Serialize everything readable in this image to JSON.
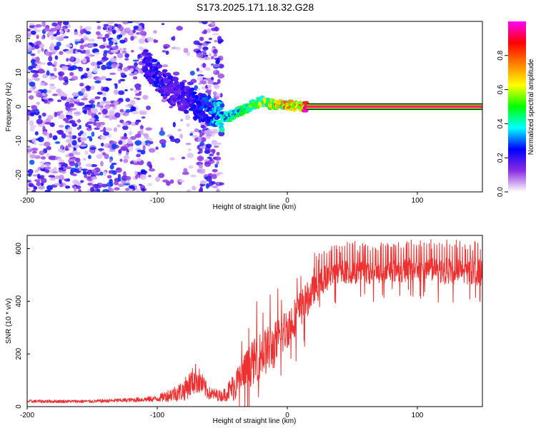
{
  "chart_data": [
    {
      "type": "heatmap",
      "title": "S173.2025.171.18.32.G28",
      "xlabel": "Height of straight line (km)",
      "ylabel": "Frequency (Hz)",
      "xlim": [
        -200,
        150
      ],
      "ylim": [
        -25,
        25
      ],
      "x_ticks": [
        -200,
        -100,
        0,
        100
      ],
      "y_ticks": [
        -20,
        -10,
        0,
        10,
        20
      ],
      "colorbar": {
        "label": "Normalized spectral amplitude",
        "range": [
          0,
          1
        ],
        "ticks": [
          0.0,
          0.2,
          0.4,
          0.6,
          0.8
        ],
        "colormap": [
          "#ffffff",
          "#8a2be2",
          "#0000ff",
          "#00ffff",
          "#00ff00",
          "#ffff00",
          "#ff8000",
          "#ff0000",
          "#ff00ff"
        ]
      },
      "ridge": {
        "description_points_x": [
          -110,
          -100,
          -90,
          -80,
          -70,
          -60,
          -50,
          -45,
          -40,
          -30,
          -20,
          -10,
          0,
          10,
          15,
          150
        ],
        "description_points_y": [
          13,
          9,
          5,
          3,
          0,
          -1,
          -3,
          -3,
          -2,
          0,
          1.5,
          0.5,
          0.5,
          0,
          0,
          0
        ],
        "amplitude": [
          0.2,
          0.25,
          0.2,
          0.2,
          0.25,
          0.3,
          0.4,
          0.45,
          0.45,
          0.5,
          0.6,
          0.7,
          0.75,
          0.8,
          0.95,
          0.95
        ]
      },
      "noise_region_x": [
        -200,
        -50
      ],
      "grid": false
    },
    {
      "type": "line",
      "xlabel": "Height of straight line (km)",
      "ylabel": "SNR (10 * v/v)",
      "xlim": [
        -200,
        150
      ],
      "ylim": [
        0,
        650
      ],
      "x_ticks": [
        -200,
        -100,
        0,
        100
      ],
      "y_ticks": [
        0,
        200,
        400,
        600
      ],
      "line_color": "#ee3030",
      "trend_x": [
        -200,
        -150,
        -120,
        -100,
        -80,
        -70,
        -60,
        -50,
        -40,
        -30,
        -20,
        -10,
        0,
        10,
        20,
        30,
        40,
        60,
        80,
        100,
        120,
        150
      ],
      "trend_y": [
        20,
        20,
        25,
        30,
        60,
        110,
        50,
        40,
        80,
        150,
        200,
        230,
        300,
        370,
        440,
        490,
        510,
        510,
        515,
        520,
        515,
        510
      ],
      "spread_y": [
        6,
        6,
        8,
        12,
        40,
        60,
        25,
        20,
        60,
        80,
        90,
        90,
        80,
        70,
        60,
        50,
        45,
        45,
        45,
        45,
        50,
        50
      ],
      "grid": false
    }
  ]
}
